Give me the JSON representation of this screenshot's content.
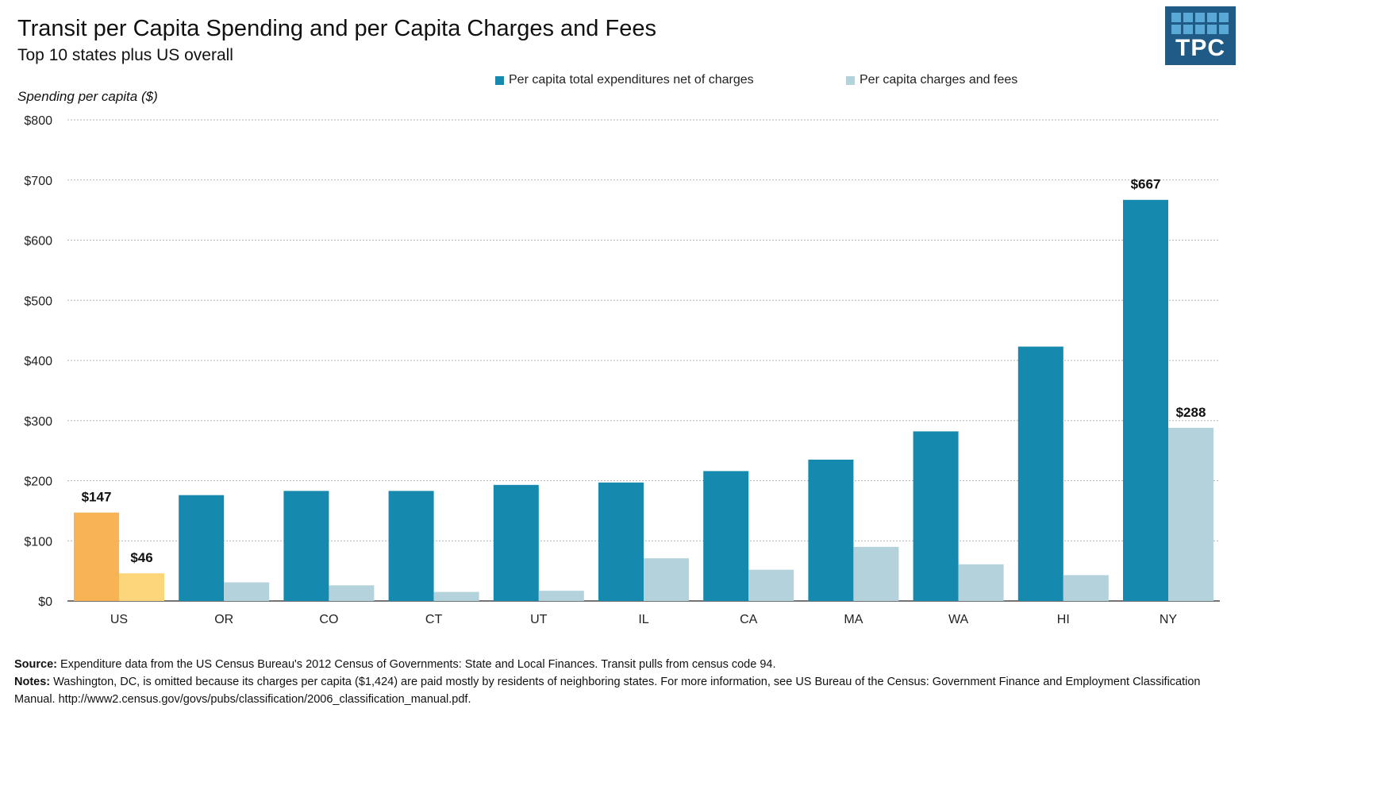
{
  "chart_data": {
    "type": "bar",
    "title": "Transit per Capita Spending and per Capita Charges and Fees",
    "subtitle": "Top 10 states plus US overall",
    "ylabel": "Spending per capita ($)",
    "ylim": [
      0,
      800
    ],
    "yticks": [
      0,
      100,
      200,
      300,
      400,
      500,
      600,
      700,
      800
    ],
    "ytick_labels": [
      "$0",
      "$100",
      "$200",
      "$300",
      "$400",
      "$500",
      "$600",
      "$700",
      "$800"
    ],
    "grid": true,
    "legend_position": "top",
    "categories": [
      "US",
      "OR",
      "CO",
      "CT",
      "UT",
      "IL",
      "CA",
      "MA",
      "WA",
      "HI",
      "NY"
    ],
    "series": [
      {
        "name": "Per capita total expenditures net of charges",
        "color": "#168aae",
        "highlight_color": "#f8b454",
        "values": [
          147,
          176,
          183,
          183,
          193,
          197,
          216,
          235,
          282,
          423,
          667
        ]
      },
      {
        "name": "Per capita charges and fees",
        "color": "#b3d2dc",
        "highlight_color": "#fdd67b",
        "values": [
          46,
          31,
          26,
          15,
          17,
          71,
          52,
          90,
          61,
          43,
          288
        ]
      }
    ],
    "highlight_category": "US",
    "data_labels": [
      {
        "category": "US",
        "series": 0,
        "text": "$147"
      },
      {
        "category": "US",
        "series": 1,
        "text": "$46"
      },
      {
        "category": "NY",
        "series": 0,
        "text": "$667"
      },
      {
        "category": "NY",
        "series": 1,
        "text": "$288"
      }
    ]
  },
  "logo": {
    "text": "TPC"
  },
  "footer": {
    "source_label": "Source:",
    "source_text": " Expenditure data from the US Census Bureau's 2012 Census of Governments: State and Local Finances. Transit pulls from census code 94.",
    "notes_label": "Notes:",
    "notes_text": " Washington, DC, is omitted because its charges per capita ($1,424) are paid mostly by residents of neighboring states.  For more information, see US Bureau of the Census: Government Finance and Employment Classification Manual. http://www2.census.gov/govs/pubs/classification/2006_classification_manual.pdf."
  }
}
